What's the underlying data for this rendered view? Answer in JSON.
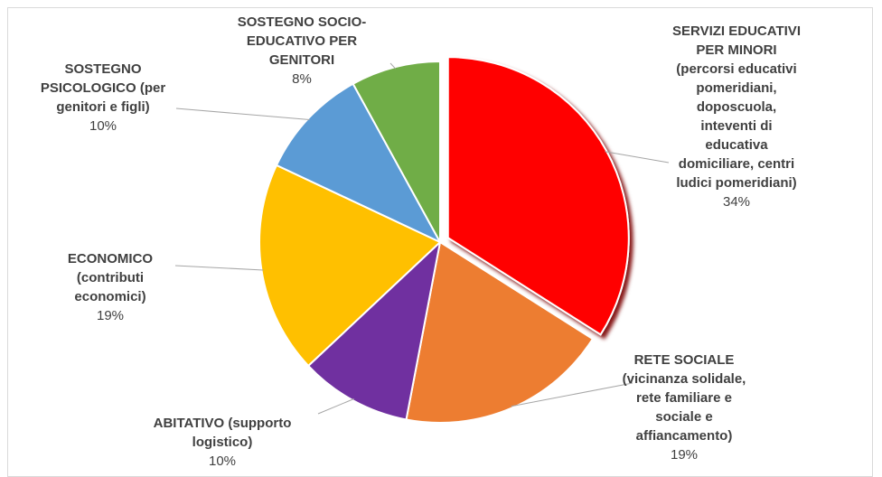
{
  "chart_data": {
    "type": "pie",
    "slices": [
      {
        "label": "SERVIZI EDUCATIVI\nPER MINORI\n(percorsi educativi\npomeridiani,\ndoposcuola,\ninteventi di\neducativa\ndomiciliare, centri\nludici pomeridiani)",
        "value": 34,
        "pct_label": "34%",
        "color": "#ff0000"
      },
      {
        "label": "RETE SOCIALE\n(vicinanza solidale,\nrete familiare e\nsociale e\naffiancamento)",
        "value": 19,
        "pct_label": "19%",
        "color": "#ed7d31"
      },
      {
        "label": "ABITATIVO (supporto\nlogistico)",
        "value": 10,
        "pct_label": "10%",
        "color": "#7030a0"
      },
      {
        "label": "ECONOMICO\n(contributi\neconomici)",
        "value": 19,
        "pct_label": "19%",
        "color": "#ffc000"
      },
      {
        "label": "SOSTEGNO\nPSICOLOGICO (per\ngenitori e figli)",
        "value": 10,
        "pct_label": "10%",
        "color": "#5b9bd5"
      },
      {
        "label": "SOSTEGNO SOCIO-\nEDUCATIVO PER\nGENITORI",
        "value": 8,
        "pct_label": "8%",
        "color": "#70ad47"
      }
    ],
    "start": "12 o'clock",
    "direction": "clockwise",
    "exploded_slice": "SERVIZI EDUCATIVI PER MINORI",
    "legend": "none"
  }
}
